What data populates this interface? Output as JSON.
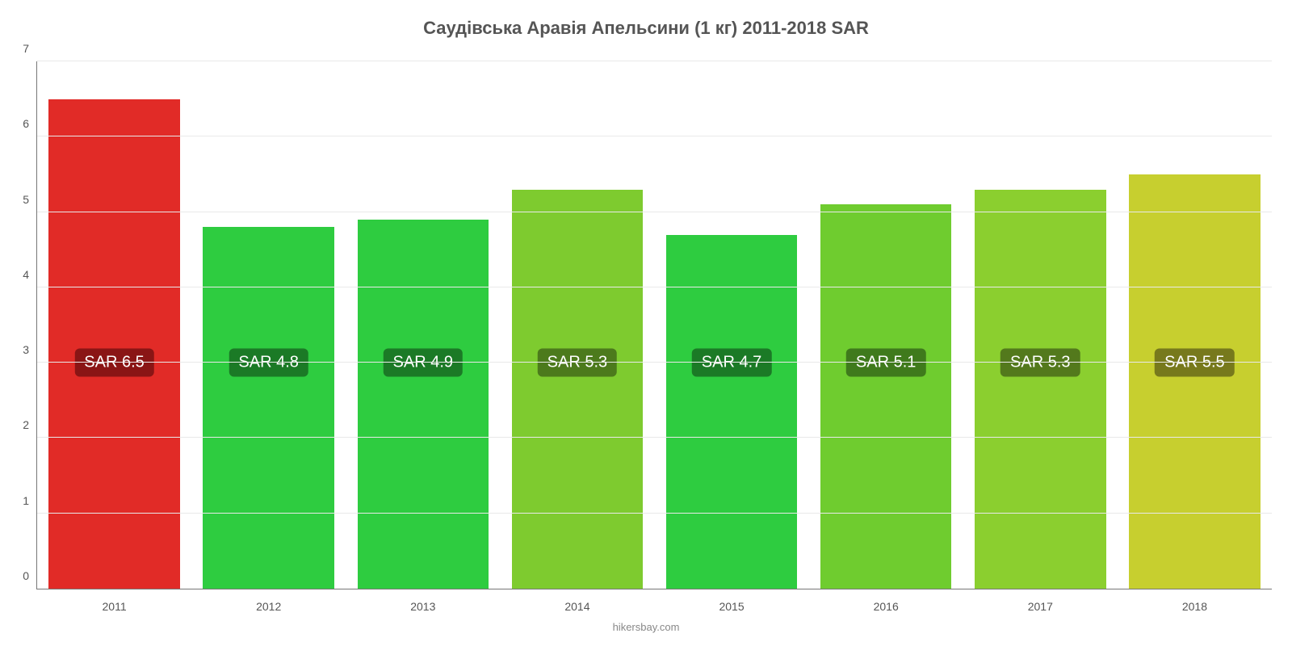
{
  "chart": {
    "type": "bar",
    "title": "Саудівська Аравія Апельсини (1 кг) 2011-2018 SAR",
    "title_fontsize": 22,
    "title_color": "#555555",
    "background_color": "#ffffff",
    "axis_color": "#777777",
    "grid_color": "#e9e9e9",
    "ylim": [
      0,
      7
    ],
    "ytick_step": 1,
    "yticks": [
      0,
      1,
      2,
      3,
      4,
      5,
      6,
      7
    ],
    "tick_fontsize": 14,
    "tick_color": "#555555",
    "bar_width_ratio": 0.85,
    "badge_fontsize": 20,
    "attribution": "hikersbay.com",
    "attribution_fontsize": 13,
    "attribution_color": "#888888",
    "badge_vertical_center_value": 3,
    "bars": [
      {
        "label": "2011",
        "value": 6.5,
        "value_label": "SAR 6.5",
        "bar_color": "#e12b27",
        "badge_bg": "#8a1515"
      },
      {
        "label": "2012",
        "value": 4.8,
        "value_label": "SAR 4.8",
        "bar_color": "#2ecc40",
        "badge_bg": "#1b7a26"
      },
      {
        "label": "2013",
        "value": 4.9,
        "value_label": "SAR 4.9",
        "bar_color": "#2ecc40",
        "badge_bg": "#1b7a26"
      },
      {
        "label": "2014",
        "value": 5.3,
        "value_label": "SAR 5.3",
        "bar_color": "#7ecb2f",
        "badge_bg": "#4c7a1c"
      },
      {
        "label": "2015",
        "value": 4.7,
        "value_label": "SAR 4.7",
        "bar_color": "#2ecc40",
        "badge_bg": "#1b7a26"
      },
      {
        "label": "2016",
        "value": 5.1,
        "value_label": "SAR 5.1",
        "bar_color": "#6fcc2f",
        "badge_bg": "#3f7a1c"
      },
      {
        "label": "2017",
        "value": 5.3,
        "value_label": "SAR 5.3",
        "bar_color": "#8bcf2f",
        "badge_bg": "#53791c"
      },
      {
        "label": "2018",
        "value": 5.5,
        "value_label": "SAR 5.5",
        "bar_color": "#c7cf2f",
        "badge_bg": "#77791c"
      }
    ]
  }
}
